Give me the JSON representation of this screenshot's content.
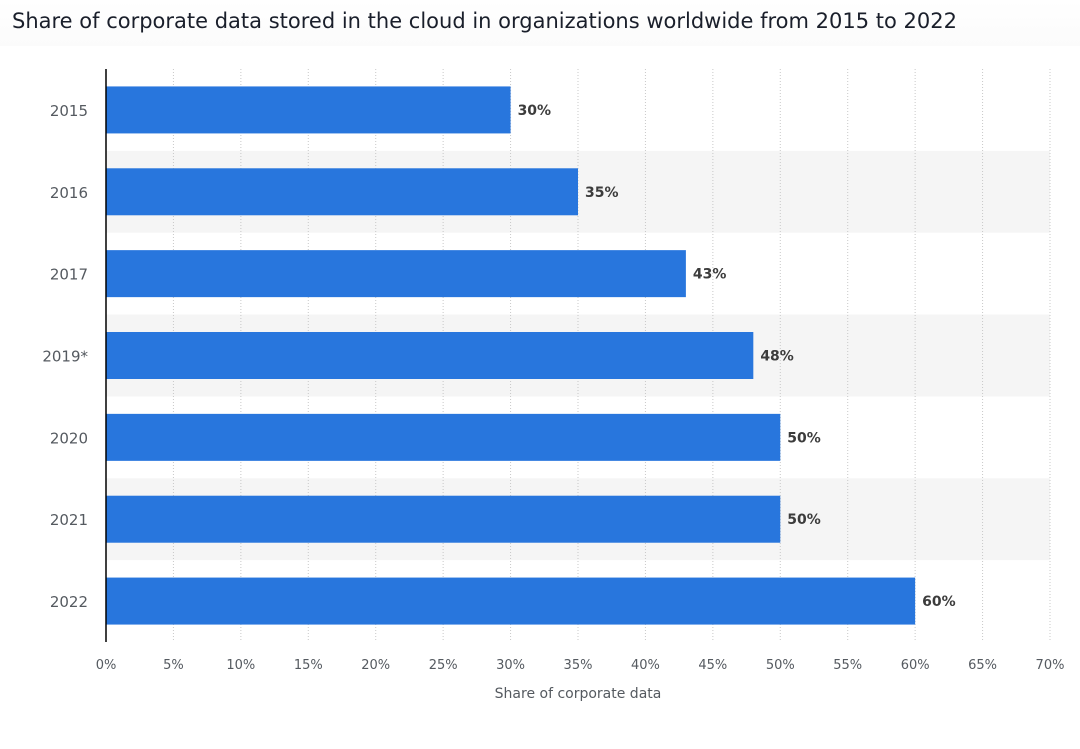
{
  "chart_data": {
    "type": "bar",
    "orientation": "horizontal",
    "title": "Share of corporate data stored in the cloud in organizations worldwide from 2015 to 2022",
    "xlabel": "Share of corporate data",
    "ylabel": "",
    "categories": [
      "2015",
      "2016",
      "2017",
      "2019*",
      "2020",
      "2021",
      "2022"
    ],
    "values": [
      30,
      35,
      43,
      48,
      50,
      50,
      60
    ],
    "value_labels": [
      "30%",
      "35%",
      "43%",
      "48%",
      "50%",
      "50%",
      "60%"
    ],
    "xlim": [
      0,
      70
    ],
    "x_ticks": [
      0,
      5,
      10,
      15,
      20,
      25,
      30,
      35,
      40,
      45,
      50,
      55,
      60,
      65,
      70
    ],
    "x_tick_labels": [
      "0%",
      "5%",
      "10%",
      "15%",
      "20%",
      "25%",
      "30%",
      "35%",
      "40%",
      "45%",
      "50%",
      "55%",
      "60%",
      "65%",
      "70%"
    ],
    "grid": true,
    "legend": "none",
    "colors": {
      "bar": "#2876dd",
      "band": "#f5f5f5",
      "grid": "#c8c8c8",
      "axis": "#000000"
    }
  }
}
